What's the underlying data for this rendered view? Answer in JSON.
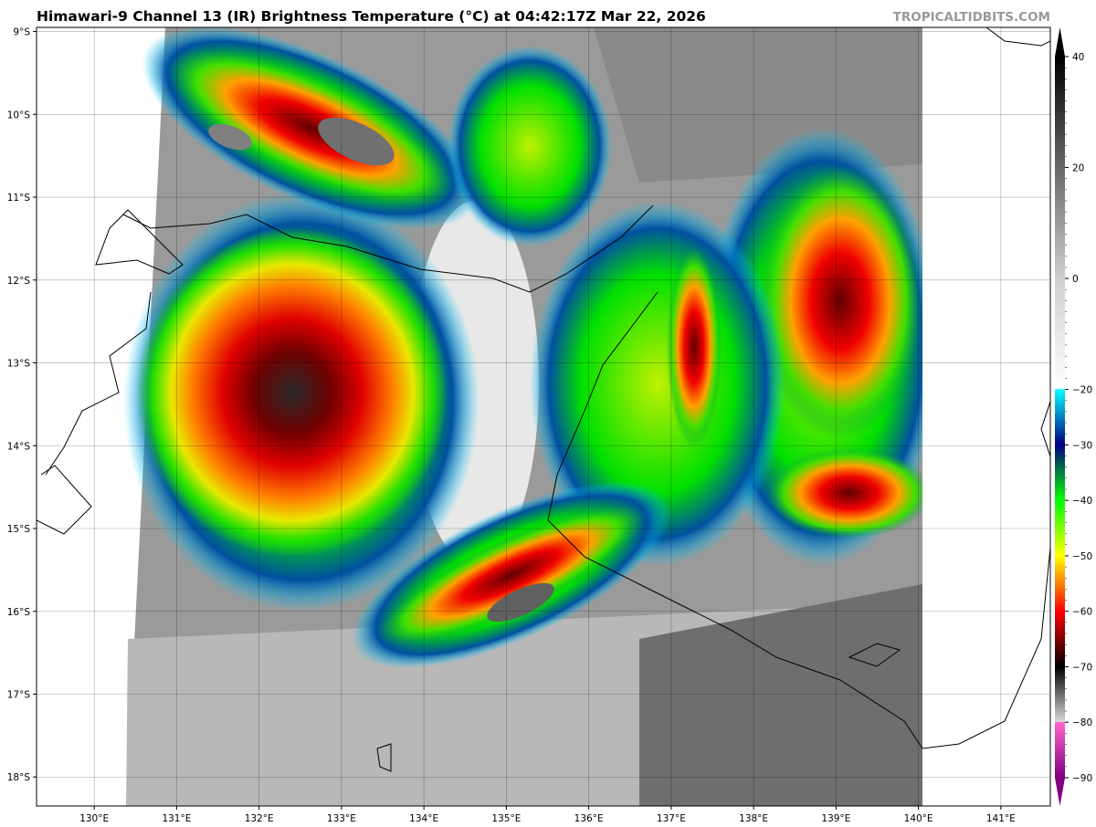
{
  "title": "Himawari-9 Channel 13 (IR) Brightness Temperature (°C) at 04:42:17Z Mar 22, 2026",
  "brand": "TROPICALTIDBITS.COM",
  "map": {
    "lon_ticks": [
      "130°E",
      "131°E",
      "132°E",
      "133°E",
      "134°E",
      "135°E",
      "136°E",
      "137°E",
      "138°E",
      "139°E",
      "140°E",
      "141°E"
    ],
    "lat_ticks": [
      "9°S",
      "10°S",
      "11°S",
      "12°S",
      "13°S",
      "14°S",
      "15°S",
      "16°S",
      "17°S",
      "18°S"
    ],
    "lon_range": [
      129.3,
      141.6
    ],
    "lat_range": [
      -8.95,
      -18.35
    ],
    "grid": true
  },
  "colorbar": {
    "range": [
      -90,
      40
    ],
    "tick_labels": [
      "40",
      "20",
      "0",
      "−20",
      "−30",
      "−40",
      "−50",
      "−60",
      "−70",
      "−80",
      "−90"
    ],
    "tick_values": [
      40,
      20,
      0,
      -20,
      -30,
      -40,
      -50,
      -60,
      -70,
      -80,
      -90
    ],
    "stops": [
      {
        "v": 40,
        "c": "#000000"
      },
      {
        "v": 0,
        "c": "#cfcfcf"
      },
      {
        "v": -19.9,
        "c": "#ffffff"
      },
      {
        "v": -20,
        "c": "#00ffff"
      },
      {
        "v": -30,
        "c": "#000080"
      },
      {
        "v": -35,
        "c": "#008040"
      },
      {
        "v": -40,
        "c": "#00ff00"
      },
      {
        "v": -50,
        "c": "#ffff00"
      },
      {
        "v": -55,
        "c": "#ff8000"
      },
      {
        "v": -60,
        "c": "#ff0000"
      },
      {
        "v": -70,
        "c": "#000000"
      },
      {
        "v": -79.9,
        "c": "#d8d8d8"
      },
      {
        "v": -80,
        "c": "#ff66cc"
      },
      {
        "v": -90,
        "c": "#800080"
      }
    ]
  }
}
